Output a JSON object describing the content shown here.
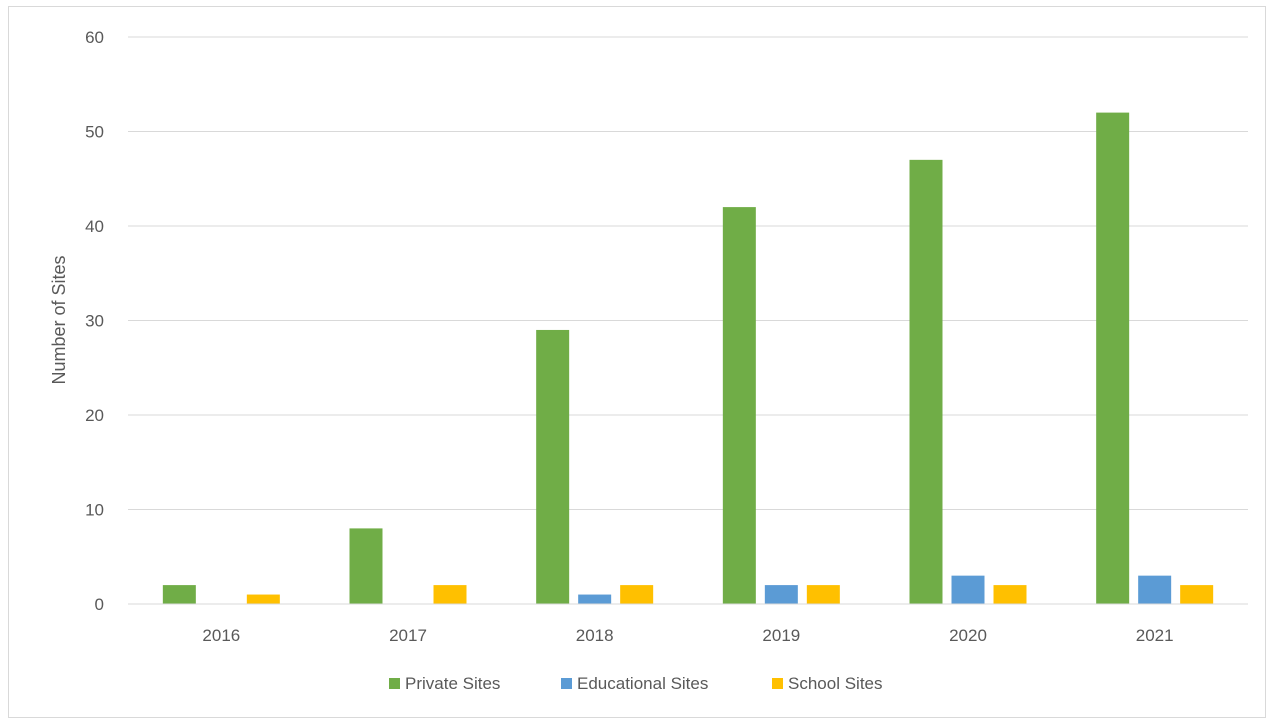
{
  "chart_data": {
    "type": "bar",
    "title": "",
    "xlabel": "",
    "ylabel": "Number of Sites",
    "categories": [
      "2016",
      "2017",
      "2018",
      "2019",
      "2020",
      "2021"
    ],
    "ylim": [
      0,
      60
    ],
    "yticks": [
      "0",
      "10",
      "20",
      "30",
      "40",
      "50",
      "60"
    ],
    "grid": true,
    "legend_position": "bottom",
    "series": [
      {
        "name": "Private Sites",
        "color": "#70ad47",
        "values": [
          2,
          8,
          29,
          42,
          47,
          52
        ]
      },
      {
        "name": "Educational Sites",
        "color": "#5b9bd5",
        "values": [
          0,
          0,
          1,
          2,
          3,
          3
        ]
      },
      {
        "name": "School Sites",
        "color": "#ffc000",
        "values": [
          1,
          2,
          2,
          2,
          2,
          2
        ]
      }
    ]
  }
}
